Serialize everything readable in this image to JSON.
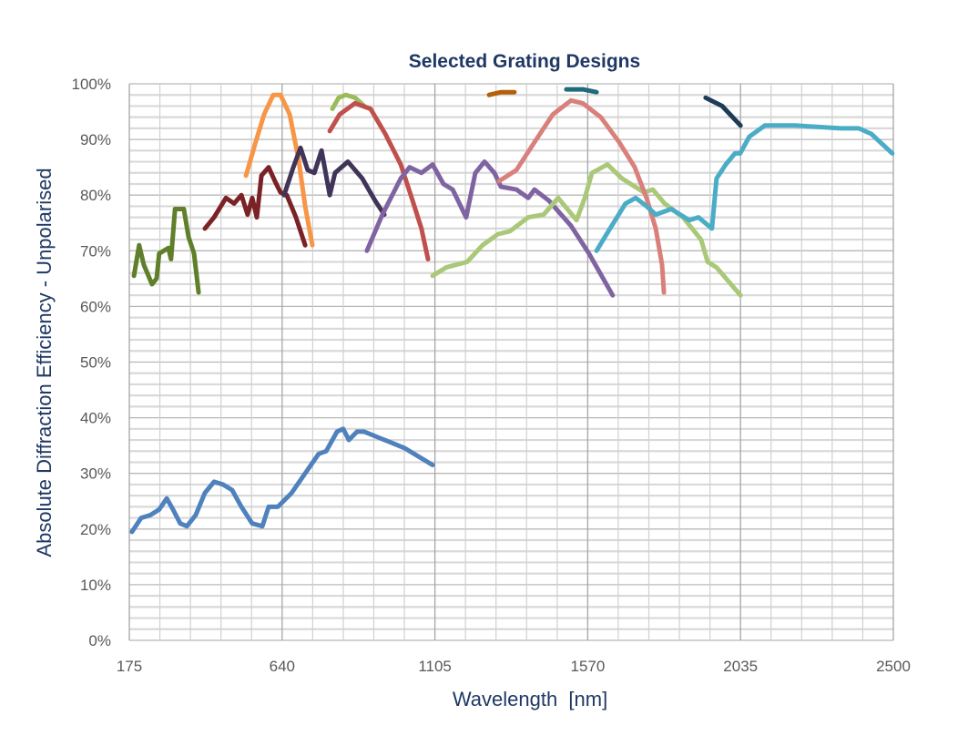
{
  "chart_data": {
    "type": "line",
    "title": "Selected Grating Designs",
    "xlabel": "Wavelength  [nm]",
    "ylabel": "Absolute Diffraction Efficiency - Unpolarised",
    "xlim": [
      175,
      2500
    ],
    "ylim": [
      0,
      100
    ],
    "x_ticks": [
      "175",
      "640",
      "1105",
      "1570",
      "2035",
      "2500"
    ],
    "y_ticks": [
      "0%",
      "10%",
      "20%",
      "30%",
      "40%",
      "50%",
      "60%",
      "70%",
      "80%",
      "90%",
      "100%"
    ],
    "grid": true,
    "legend": "none",
    "series": [
      {
        "color": "#4f81bd",
        "x": [
          183,
          211,
          239,
          266,
          289,
          308,
          330,
          350,
          377,
          405,
          433,
          460,
          488,
          516,
          549,
          580,
          599,
          627,
          669,
          710,
          751,
          774,
          807,
          826,
          843,
          868,
          890,
          931,
          973,
          1014,
          1056,
          1098
        ],
        "y": [
          19.5,
          22,
          22.5,
          23.5,
          25.5,
          23.5,
          21,
          20.5,
          22.5,
          26.5,
          28.5,
          28,
          27,
          24,
          21,
          20.5,
          24,
          24,
          26.5,
          30,
          33.5,
          34,
          37.5,
          38,
          36,
          37.5,
          37.5,
          36.5,
          35.5,
          34.5,
          33,
          31.5
        ]
      },
      {
        "color": "#5f7f2a",
        "x": [
          189,
          205,
          219,
          244,
          258,
          266,
          294,
          302,
          314,
          341,
          355,
          372,
          386
        ],
        "y": [
          65.5,
          71,
          67.5,
          64,
          65,
          69.5,
          70.5,
          68.5,
          77.5,
          77.5,
          72.5,
          69.5,
          62.5
        ]
      },
      {
        "color": "#7b2226",
        "x": [
          405,
          433,
          469,
          494,
          516,
          535,
          549,
          563,
          577,
          599,
          618,
          635,
          654,
          682,
          710
        ],
        "y": [
          74,
          76,
          79.5,
          78.5,
          80,
          76.5,
          79.5,
          76,
          83.5,
          85,
          82.5,
          80.5,
          80,
          76,
          71
        ]
      },
      {
        "color": "#f79646",
        "x": [
          530,
          557,
          585,
          613,
          635,
          663,
          690,
          710,
          732
        ],
        "y": [
          83.5,
          89,
          94.5,
          98,
          98,
          94.5,
          86.5,
          78,
          71
        ]
      },
      {
        "color": "#403458",
        "x": [
          646,
          674,
          696,
          718,
          738,
          760,
          785,
          801,
          840,
          884,
          923,
          951
        ],
        "y": [
          80,
          85,
          88.5,
          84.5,
          84,
          88,
          80,
          84,
          86,
          83,
          79,
          76.5
        ]
      },
      {
        "color": "#9bbb59",
        "x": [
          793,
          812,
          834,
          862,
          890
        ],
        "y": [
          95.5,
          97.5,
          98,
          97.5,
          96
        ]
      },
      {
        "color": "#c0504d",
        "x": [
          785,
          815,
          862,
          909,
          954,
          1001,
          1037,
          1064,
          1084
        ],
        "y": [
          91.5,
          94.5,
          96.5,
          95.5,
          91,
          85.5,
          79,
          74,
          68.5
        ]
      },
      {
        "color": "#8064a2",
        "x": [
          898,
          945,
          1001,
          1028,
          1064,
          1098,
          1131,
          1159,
          1200,
          1228,
          1256,
          1286,
          1306,
          1353,
          1389,
          1408,
          1452,
          1519,
          1574,
          1646
        ],
        "y": [
          70,
          76.5,
          83,
          85,
          84,
          85.5,
          82,
          81,
          76,
          84,
          86,
          84,
          81.5,
          81,
          79.5,
          81,
          79,
          74.5,
          69.5,
          62
        ]
      },
      {
        "color": "#a9c878",
        "x": [
          1098,
          1139,
          1203,
          1250,
          1297,
          1333,
          1389,
          1436,
          1480,
          1508,
          1536,
          1561,
          1583,
          1630,
          1674,
          1741,
          1768,
          1804,
          1860,
          1915,
          1935,
          1962,
          2035
        ],
        "y": [
          65.5,
          67,
          68,
          71,
          73,
          73.5,
          76,
          76.5,
          79.5,
          77.5,
          75.5,
          79.5,
          84,
          85.5,
          83,
          80.5,
          81,
          78.5,
          76,
          72,
          68,
          67,
          62
        ]
      },
      {
        "color": "#d9807c",
        "x": [
          1300,
          1353,
          1408,
          1464,
          1519,
          1555,
          1610,
          1666,
          1713,
          1749,
          1777,
          1796,
          1802
        ],
        "y": [
          82.5,
          84.5,
          89.5,
          94.5,
          97,
          96.5,
          94,
          89.5,
          85,
          79.5,
          74,
          67.5,
          62.5
        ]
      },
      {
        "color": "#b45f0a",
        "x": [
          1270,
          1306,
          1347
        ],
        "y": [
          98,
          98.5,
          98.5
        ]
      },
      {
        "color": "#1f6b7a",
        "x": [
          1505,
          1555,
          1597
        ],
        "y": [
          99,
          99,
          98.5
        ]
      },
      {
        "color": "#1f3b5a",
        "x": [
          1929,
          1979,
          2035
        ],
        "y": [
          97.5,
          96,
          92.5
        ]
      },
      {
        "color": "#4bacc6",
        "x": [
          1597,
          1638,
          1685,
          1716,
          1749,
          1777,
          1824,
          1879,
          1907,
          1948,
          1962,
          1990,
          2018,
          2034,
          2062,
          2109,
          2201,
          2339,
          2395,
          2433,
          2497
        ],
        "y": [
          70,
          74,
          78.5,
          79.5,
          78,
          76.5,
          77.5,
          75.5,
          76,
          74,
          83,
          85.5,
          87.5,
          87.5,
          90.5,
          92.5,
          92.5,
          92,
          92,
          91,
          87.5
        ]
      }
    ]
  }
}
